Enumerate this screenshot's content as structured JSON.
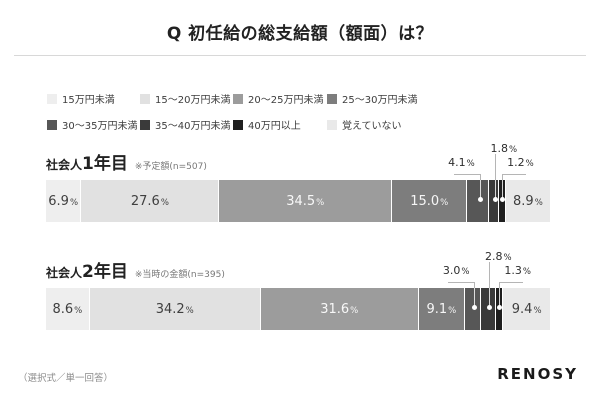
{
  "title": "Q 初任給の総支給額（額面）は？",
  "footer": {
    "note": "（選択式／単一回答）",
    "brand": "RENOSY"
  },
  "chart_data": {
    "type": "bar",
    "stacked": true,
    "orientation": "horizontal",
    "unit": "%",
    "xlim": [
      0,
      100
    ],
    "legend_position": "top",
    "grid": false,
    "categories": [
      "15万円未満",
      "15～20万円未満",
      "20～25万円未満",
      "25～30万円未満",
      "30～35万円未満",
      "35～40万円未満",
      "40万円以上",
      "覚えていない"
    ],
    "category_colors": [
      "#eeeeee",
      "#e1e1e1",
      "#9c9c9c",
      "#7d7d7d",
      "#575757",
      "#3a3a3a",
      "#1f1f1f",
      "#e9e9e9"
    ],
    "rows": [
      {
        "label_prefix": "社会人",
        "label_big": "1年目",
        "note": "※予定額(n=507)",
        "values": [
          6.9,
          27.6,
          34.5,
          15.0,
          4.1,
          1.8,
          1.2,
          8.9
        ]
      },
      {
        "label_prefix": "社会人",
        "label_big": "2年目",
        "note": "※当時の金額(n=395)",
        "values": [
          8.6,
          34.2,
          31.6,
          9.1,
          3.0,
          2.8,
          1.3,
          9.4
        ]
      }
    ],
    "callout_indices": [
      4,
      5,
      6
    ],
    "inside_label_min": 5
  }
}
